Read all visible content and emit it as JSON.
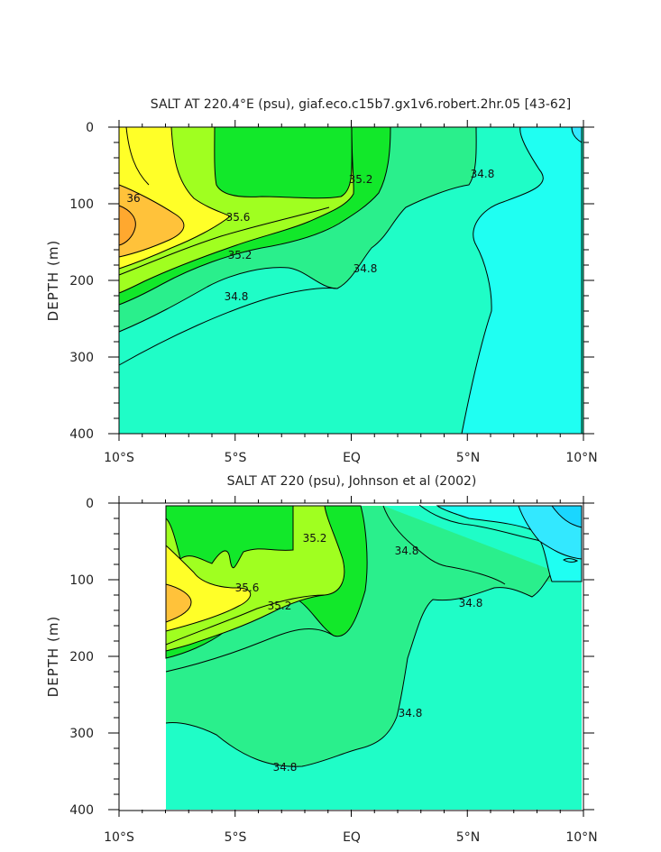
{
  "chart_data": [
    {
      "type": "contour",
      "title": "SALT AT 220.4°E (psu), giaf.eco.c15b7.gx1v6.robert.2hr.05 [43-62]",
      "xlabel": "",
      "ylabel": "DEPTH (m)",
      "x_tick_labels": [
        "10°S",
        "5°S",
        "EQ",
        "5°N",
        "10°N"
      ],
      "x_ticks_lat": [
        -10,
        -5,
        0,
        5,
        10
      ],
      "y_tick_labels": [
        "0",
        "100",
        "200",
        "300",
        "400"
      ],
      "y_ticks_m": [
        0,
        100,
        200,
        300,
        400
      ],
      "xlim": [
        -10,
        10
      ],
      "ylim": [
        400,
        0
      ],
      "contour_levels": [
        34.8,
        35.2,
        35.6,
        36
      ],
      "contour_labels": [
        {
          "text": "36",
          "lat": -9.5,
          "depth": 95
        },
        {
          "text": "35.6",
          "lat": -5.1,
          "depth": 118
        },
        {
          "text": "35.2",
          "lat": -4.8,
          "depth": 167
        },
        {
          "text": "34.8",
          "lat": -4.4,
          "depth": 222
        },
        {
          "text": "35.2",
          "lat": -0.2,
          "depth": 103
        },
        {
          "text": "34.8",
          "lat": 0.5,
          "depth": 185
        },
        {
          "text": "34.8",
          "lat": 5.2,
          "depth": 65
        }
      ]
    },
    {
      "type": "contour",
      "title": "SALT AT 220 (psu), Johnson et al (2002)",
      "xlabel": "",
      "ylabel": "DEPTH (m)",
      "x_tick_labels": [
        "10°S",
        "5°S",
        "EQ",
        "5°N",
        "10°N"
      ],
      "x_ticks_lat": [
        -10,
        -5,
        0,
        5,
        10
      ],
      "y_tick_labels": [
        "0",
        "100",
        "200",
        "300",
        "400"
      ],
      "y_ticks_m": [
        0,
        100,
        200,
        300,
        400
      ],
      "xlim": [
        -10,
        10
      ],
      "ylim": [
        400,
        0
      ],
      "data_lat_range": [
        -8,
        10
      ],
      "contour_levels": [
        34.8,
        35.2,
        35.6
      ],
      "contour_labels": [
        {
          "text": "35.6",
          "lat": -4.5,
          "depth": 110
        },
        {
          "text": "35.2",
          "lat": -1.7,
          "depth": 45
        },
        {
          "text": "35.2",
          "lat": -3.1,
          "depth": 135
        },
        {
          "text": "34.8",
          "lat": 2.3,
          "depth": 60
        },
        {
          "text": "34.8",
          "lat": 5.2,
          "depth": 130
        },
        {
          "text": "34.8",
          "lat": 2.8,
          "depth": 270
        },
        {
          "text": "34.8",
          "lat": -2.9,
          "depth": 340
        }
      ]
    }
  ],
  "colors": {
    "salinity_gt_36": "#ffc23a",
    "salinity_35_6_to_36": "#ffff28",
    "salinity_35_2_to_35_6": "#a0ff20",
    "salinity_35_0_to_35_2": "#12e82a",
    "salinity_34_8_to_35_0": "#2aef8c",
    "salinity_34_6_to_34_8": "#1ffdc7",
    "salinity_lt_34_6": "#1ffff2",
    "salinity_lowest": "#33e8ff",
    "salinity_min": "#1ad6ff",
    "contour_line": "#000000"
  }
}
